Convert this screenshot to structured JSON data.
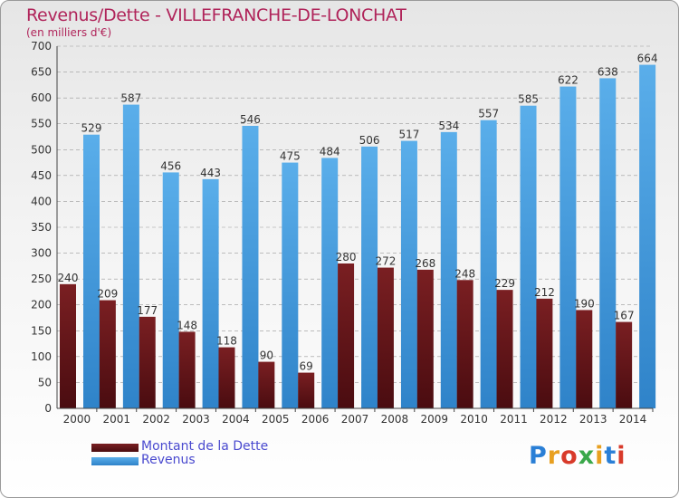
{
  "title": "Revenus/Dette - VILLEFRANCHE-DE-LONCHAT",
  "subtitle": "(en milliers d'€)",
  "logo": {
    "text": "Proxiti",
    "letter_colors": [
      "#2a7fd6",
      "#e8a020",
      "#d83a2a",
      "#3aa84a",
      "#e8a020",
      "#2a7fd6",
      "#d83a2a"
    ]
  },
  "colors": {
    "dette": "#7a1f22",
    "revenus": "#4d9fe3",
    "grid": "#999999"
  },
  "chart_data": {
    "type": "bar",
    "categories": [
      "2000",
      "2001",
      "2002",
      "2003",
      "2004",
      "2005",
      "2006",
      "2007",
      "2008",
      "2009",
      "2010",
      "2011",
      "2012",
      "2013",
      "2014"
    ],
    "series": [
      {
        "name": "Montant de la Dette",
        "values": [
          240,
          209,
          177,
          148,
          118,
          90,
          69,
          280,
          272,
          268,
          248,
          229,
          212,
          190,
          167
        ]
      },
      {
        "name": "Revenus",
        "values": [
          529,
          587,
          456,
          443,
          546,
          475,
          484,
          506,
          517,
          534,
          557,
          585,
          622,
          638,
          664
        ]
      }
    ],
    "ylim": [
      0,
      700
    ],
    "yticks": [
      0,
      50,
      100,
      150,
      200,
      250,
      300,
      350,
      400,
      450,
      500,
      550,
      600,
      650,
      700
    ],
    "grid": true,
    "legend_position": "bottom-left"
  }
}
